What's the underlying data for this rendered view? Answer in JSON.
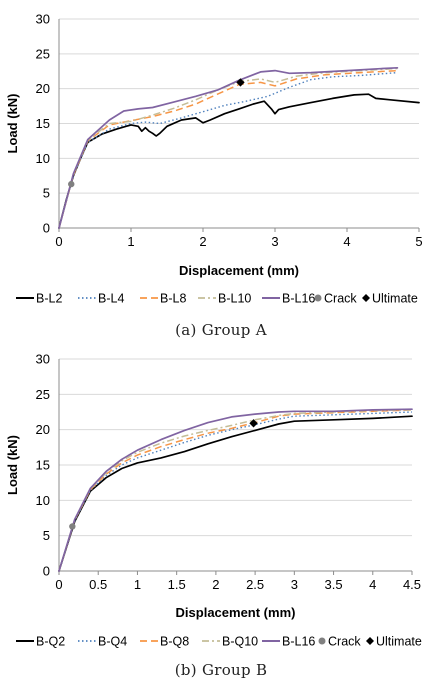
{
  "chart_data": [
    {
      "type": "line",
      "xlabel": "Displacement (mm)",
      "ylabel": "Load (kN)",
      "xlim": [
        0,
        5
      ],
      "ylim": [
        0,
        30
      ],
      "xticks": [
        "0",
        "1",
        "2",
        "3",
        "4",
        "5"
      ],
      "yticks": [
        "0",
        "5",
        "10",
        "15",
        "20",
        "25",
        "30"
      ],
      "grid": "horizontal",
      "legend": "bottom",
      "caption": "(a)  Group A",
      "series": [
        {
          "name": "B-L2",
          "color": "#000000",
          "dash": "solid",
          "width": 1.7,
          "x": [
            0,
            0.1,
            0.2,
            0.3,
            0.4,
            0.6,
            0.8,
            1.0,
            1.1,
            1.15,
            1.2,
            1.25,
            1.3,
            1.35,
            1.4,
            1.5,
            1.7,
            1.9,
            2.0,
            2.1,
            2.3,
            2.5,
            2.7,
            2.85,
            2.95,
            3.0,
            3.05,
            3.2,
            3.5,
            3.8,
            4.1,
            4.3,
            4.4,
            4.6,
            5.0
          ],
          "y": [
            0,
            4.0,
            7.5,
            10.0,
            12.3,
            13.5,
            14.2,
            14.8,
            14.6,
            13.9,
            14.4,
            13.9,
            13.6,
            13.2,
            13.6,
            14.6,
            15.5,
            15.8,
            15.1,
            15.5,
            16.4,
            17.1,
            17.8,
            18.2,
            17.1,
            16.4,
            17.0,
            17.4,
            18.0,
            18.6,
            19.1,
            19.2,
            18.6,
            18.4,
            18.0
          ]
        },
        {
          "name": "B-L4",
          "color": "#4f81bd",
          "dash": "dot",
          "width": 1.4,
          "x": [
            0,
            0.2,
            0.4,
            0.7,
            1.0,
            1.2,
            1.4,
            1.7,
            2.0,
            2.3,
            2.6,
            2.9,
            3.2,
            3.5,
            3.8,
            4.2,
            4.7
          ],
          "y": [
            0,
            7.5,
            12.3,
            14.2,
            15.0,
            15.2,
            15.0,
            15.8,
            16.7,
            17.6,
            18.2,
            18.9,
            20.2,
            21.3,
            21.7,
            21.9,
            22.3
          ]
        },
        {
          "name": "B-L8",
          "color": "#f79646",
          "dash": "longdash",
          "width": 1.5,
          "x": [
            0,
            0.2,
            0.4,
            0.7,
            1.0,
            1.3,
            1.6,
            1.9,
            2.2,
            2.5,
            2.8,
            3.0,
            3.3,
            3.7,
            4.2,
            4.7
          ],
          "y": [
            0,
            7.6,
            12.5,
            14.8,
            15.4,
            16.0,
            16.8,
            17.8,
            19.2,
            20.6,
            20.9,
            20.4,
            21.4,
            22.0,
            22.3,
            22.6
          ]
        },
        {
          "name": "B-L10",
          "color": "#c4bd97",
          "dash": "dashdot",
          "width": 1.5,
          "x": [
            0,
            0.2,
            0.4,
            0.7,
            1.0,
            1.3,
            1.6,
            1.9,
            2.2,
            2.5,
            2.8,
            3.0,
            3.3,
            3.7,
            4.2,
            4.7
          ],
          "y": [
            0,
            7.7,
            12.6,
            15.0,
            15.3,
            16.2,
            17.2,
            18.4,
            19.8,
            21.0,
            21.4,
            20.9,
            21.8,
            22.3,
            22.6,
            22.9
          ]
        },
        {
          "name": "B-L16",
          "color": "#8064a2",
          "dash": "solid",
          "width": 1.7,
          "x": [
            0,
            0.2,
            0.4,
            0.7,
            0.9,
            1.1,
            1.3,
            1.6,
            1.9,
            2.2,
            2.5,
            2.8,
            3.0,
            3.2,
            3.5,
            4.0,
            4.5,
            4.7
          ],
          "y": [
            0,
            7.8,
            12.7,
            15.5,
            16.8,
            17.1,
            17.3,
            18.1,
            18.9,
            19.8,
            21.2,
            22.4,
            22.6,
            22.2,
            22.3,
            22.6,
            22.9,
            23.0
          ]
        }
      ],
      "crack": {
        "name": "Crack",
        "color": "#808080",
        "x": 0.17,
        "y": 6.3
      },
      "ultimate": {
        "name": "Ultimate",
        "color": "#000000",
        "x": 2.52,
        "y": 20.9
      }
    },
    {
      "type": "line",
      "xlabel": "Displacement (mm)",
      "ylabel": "Load (kN)",
      "xlim": [
        0,
        4.5
      ],
      "ylim": [
        0,
        30
      ],
      "xticks": [
        "0",
        "0.5",
        "1",
        "1.5",
        "2",
        "2.5",
        "3",
        "3.5",
        "4",
        "4.5"
      ],
      "yticks": [
        "0",
        "5",
        "10",
        "15",
        "20",
        "25",
        "30"
      ],
      "grid": "horizontal",
      "legend": "bottom",
      "caption": "(b)  Group B",
      "series": [
        {
          "name": "B-Q2",
          "color": "#000000",
          "dash": "solid",
          "width": 1.7,
          "x": [
            0,
            0.2,
            0.4,
            0.6,
            0.8,
            1.0,
            1.3,
            1.6,
            1.9,
            2.2,
            2.5,
            2.8,
            3.0,
            3.5,
            4.0,
            4.5
          ],
          "y": [
            0,
            7.0,
            11.3,
            13.2,
            14.5,
            15.3,
            16.0,
            16.9,
            18.0,
            19.0,
            19.9,
            20.8,
            21.2,
            21.4,
            21.6,
            21.9
          ]
        },
        {
          "name": "B-Q4",
          "color": "#4f81bd",
          "dash": "dot",
          "width": 1.4,
          "x": [
            0,
            0.2,
            0.4,
            0.6,
            0.8,
            1.0,
            1.3,
            1.6,
            1.9,
            2.2,
            2.5,
            2.8,
            3.0,
            3.5,
            4.0,
            4.5
          ],
          "y": [
            0,
            7.1,
            11.4,
            13.5,
            15.0,
            16.0,
            17.1,
            18.2,
            19.2,
            20.0,
            20.7,
            21.5,
            21.9,
            22.1,
            22.3,
            22.5
          ]
        },
        {
          "name": "B-Q8",
          "color": "#f79646",
          "dash": "longdash",
          "width": 1.5,
          "x": [
            0,
            0.2,
            0.4,
            0.6,
            0.8,
            1.0,
            1.3,
            1.6,
            1.9,
            2.2,
            2.5,
            2.8,
            3.0,
            3.5,
            4.0,
            4.5
          ],
          "y": [
            0,
            7.2,
            11.5,
            13.7,
            15.3,
            16.4,
            17.6,
            18.6,
            19.5,
            20.2,
            21.0,
            21.9,
            22.2,
            22.4,
            22.6,
            22.8
          ]
        },
        {
          "name": "B-Q10",
          "color": "#c4bd97",
          "dash": "dashdot",
          "width": 1.5,
          "x": [
            0,
            0.2,
            0.4,
            0.6,
            0.8,
            1.0,
            1.3,
            1.6,
            1.9,
            2.2,
            2.5,
            2.8,
            3.0,
            3.5,
            4.0,
            4.5
          ],
          "y": [
            0,
            7.2,
            11.6,
            13.9,
            15.6,
            16.8,
            18.1,
            19.1,
            19.9,
            20.6,
            21.4,
            22.0,
            22.3,
            22.5,
            22.7,
            22.8
          ]
        },
        {
          "name": "B-L16",
          "color": "#8064a2",
          "dash": "solid",
          "width": 1.7,
          "x": [
            0,
            0.2,
            0.4,
            0.6,
            0.8,
            1.0,
            1.3,
            1.6,
            1.9,
            2.2,
            2.5,
            2.8,
            3.0,
            3.5,
            4.0,
            4.5
          ],
          "y": [
            0,
            7.3,
            11.7,
            14.1,
            15.8,
            17.1,
            18.6,
            19.9,
            21.0,
            21.8,
            22.2,
            22.5,
            22.6,
            22.6,
            22.8,
            22.9
          ]
        }
      ],
      "crack": {
        "name": "Crack",
        "color": "#808080",
        "x": 0.17,
        "y": 6.3
      },
      "ultimate": {
        "name": "Ultimate",
        "color": "#000000",
        "x": 2.48,
        "y": 20.9
      }
    }
  ]
}
